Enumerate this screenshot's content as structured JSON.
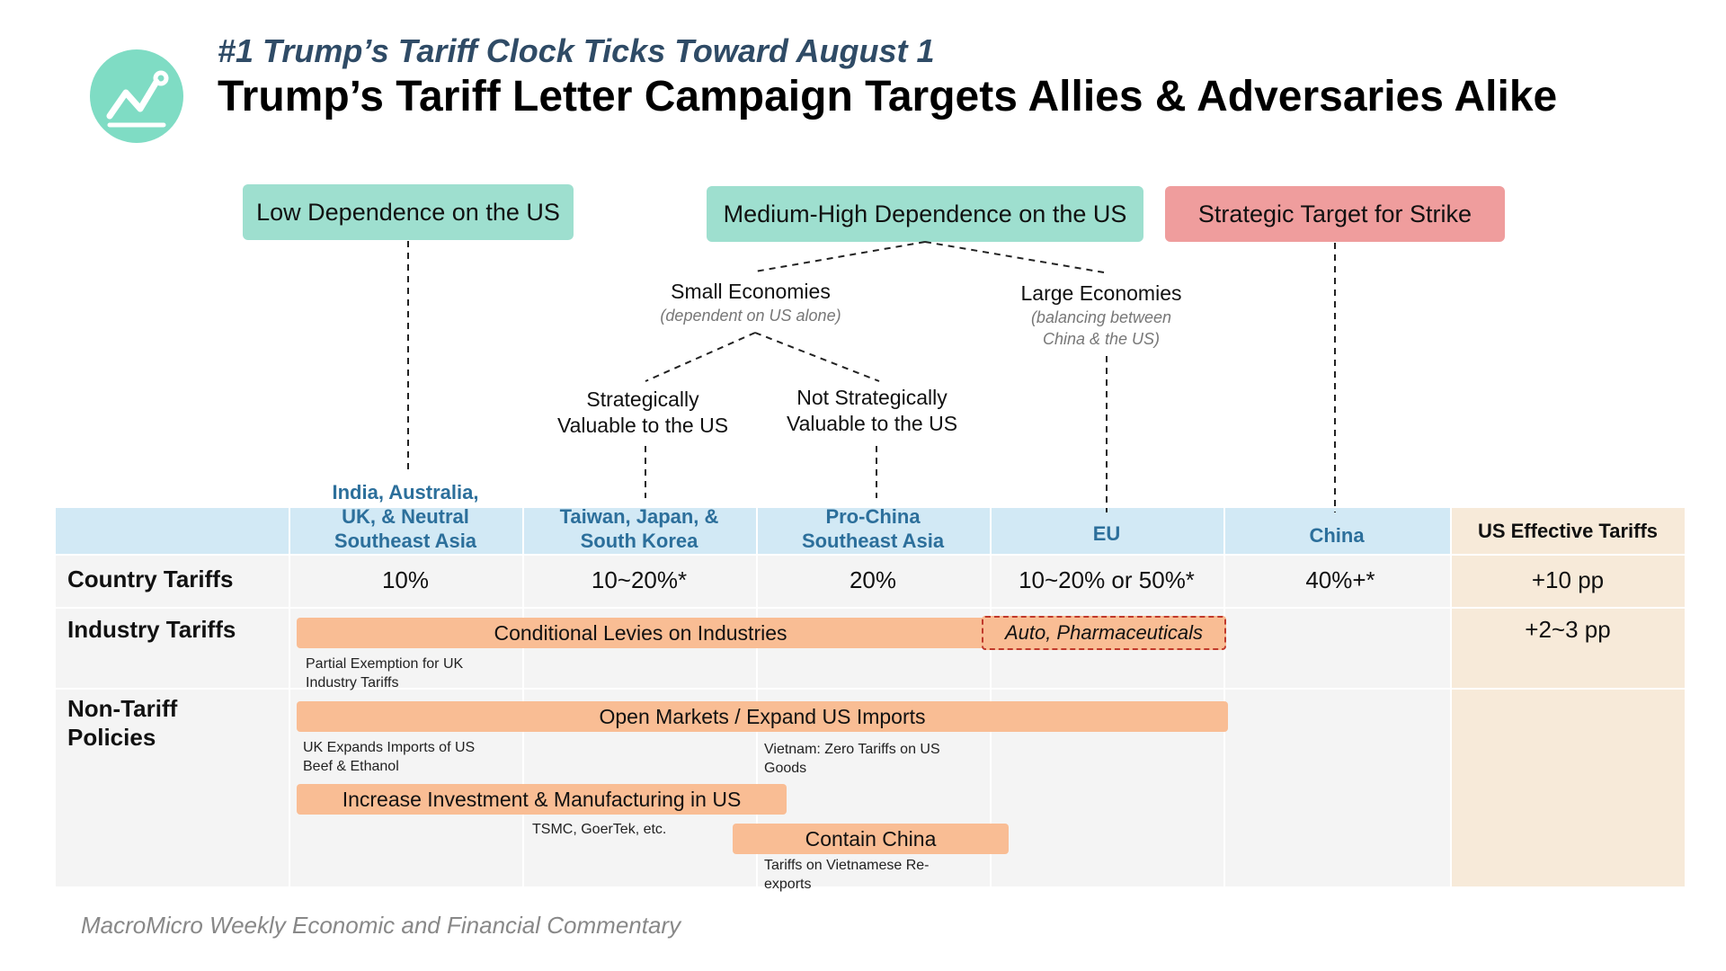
{
  "header": {
    "subtitle": "#1 Trump’s Tariff Clock Ticks Toward August 1",
    "title": "Trump’s Tariff Letter Campaign Targets Allies & Adversaries Alike",
    "logo_icon": "chart-trend-icon",
    "logo_color": "#7fdcc4"
  },
  "categories": {
    "low": "Low Dependence on the US",
    "medium_high": "Medium-High Dependence on the US",
    "strategic": "Strategic Target for Strike"
  },
  "tree": {
    "small": {
      "label": "Small Economies",
      "sub": "(dependent on US alone)"
    },
    "large": {
      "label": "Large Economies",
      "sub_line1": "(balancing between",
      "sub_line2": "China & the US)"
    },
    "valuable": {
      "line1": "Strategically",
      "line2": "Valuable to the US"
    },
    "not_valuable": {
      "line1": "Not Strategically",
      "line2": "Valuable to the US"
    }
  },
  "columns": [
    {
      "line1": "India, Australia,",
      "line2": "UK, & Neutral",
      "line3": "Southeast Asia"
    },
    {
      "line1": "Taiwan, Japan, &",
      "line2": "South Korea"
    },
    {
      "line1": "Pro-China",
      "line2": "Southeast Asia"
    },
    {
      "line1": "EU"
    },
    {
      "line1": "China"
    }
  ],
  "us_effective": {
    "header": "US Effective Tariffs",
    "country": "+10 pp",
    "industry": "+2~3 pp"
  },
  "rows": {
    "country": {
      "label": "Country Tariffs",
      "values": [
        "10%",
        "10~20%*",
        "20%",
        "10~20% or 50%*",
        "40%+*"
      ]
    },
    "industry": {
      "label": "Industry Tariffs",
      "bar": "Conditional Levies on Industries",
      "dashed": "Auto, Pharmaceuticals",
      "note_line1": "Partial Exemption for UK",
      "note_line2": "Industry Tariffs"
    },
    "non_tariff": {
      "label_line1": "Non-Tariff",
      "label_line2": "Policies",
      "bar_open": "Open Markets / Expand US Imports",
      "note_uk_line1": "UK Expands Imports of US",
      "note_uk_line2": "Beef & Ethanol",
      "note_vn_line1": "Vietnam: Zero Tariffs on US",
      "note_vn_line2": "Goods",
      "bar_invest": "Increase Investment & Manufacturing in US",
      "note_tsmc": "TSMC, GoerTek, etc.",
      "bar_contain": "Contain China",
      "note_contain_line1": "Tariffs on Vietnamese Re-",
      "note_contain_line2": "exports"
    }
  },
  "footer": "MacroMicro Weekly Economic and Financial Commentary",
  "colors": {
    "teal": "#9edfcf",
    "red": "#ef9d9d",
    "bar": "#f9bd94",
    "header_blue": "#d2e9f5",
    "us_col": "#f7ead9",
    "column_text": "#2c6f9b"
  }
}
